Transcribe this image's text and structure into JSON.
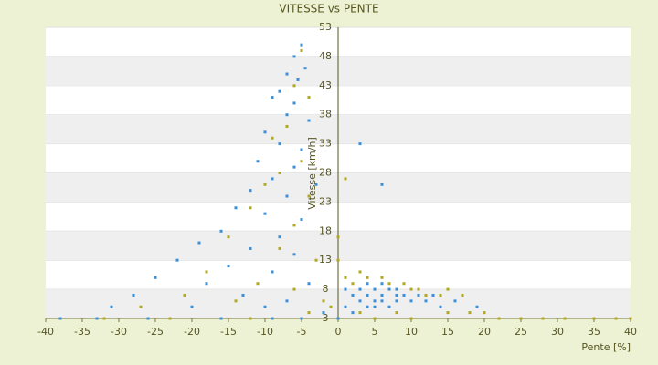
{
  "chart_data": {
    "type": "scatter",
    "title": "VITESSE vs PENTE",
    "x_label": "Pente [%]",
    "y_label": "Vitesse [km/h]",
    "xlim": [
      -40,
      40
    ],
    "xticks": [
      -40,
      -35,
      -30,
      -25,
      -20,
      -15,
      -10,
      -5,
      0,
      5,
      10,
      15,
      20,
      25,
      30,
      35,
      40
    ],
    "ylim": [
      3,
      53
    ],
    "yticks": [
      3,
      8,
      13,
      18,
      23,
      28,
      33,
      38,
      43,
      48,
      53
    ],
    "grid": true,
    "series": [
      {
        "color": "#3a8fd8",
        "x": [
          -5,
          -6,
          -4.5,
          -7,
          -5.5,
          -8,
          -9,
          -6,
          -7,
          -4,
          -10,
          -8,
          -5,
          -11,
          -6,
          -9,
          -3,
          -12,
          -7,
          -14,
          -10,
          -5,
          -16,
          -8,
          -19,
          -12,
          -6,
          -22,
          -15,
          -9,
          -25,
          -18,
          -4,
          -28,
          -13,
          -7,
          -31,
          -20,
          -10,
          -2,
          -38,
          -33,
          -26,
          -16,
          -9,
          -5,
          3,
          6,
          1,
          2,
          3,
          4,
          5,
          5,
          6,
          6,
          7,
          7,
          8,
          8,
          9,
          4,
          3,
          10,
          11,
          12,
          14,
          16,
          19,
          2,
          0,
          1,
          5,
          6,
          8,
          13,
          4
        ],
        "values": [
          50,
          48,
          46,
          45,
          44,
          42,
          41,
          40,
          38,
          37,
          35,
          33,
          32,
          30,
          29,
          27,
          26,
          25,
          24,
          22,
          21,
          20,
          18,
          17,
          16,
          15,
          14,
          13,
          12,
          11,
          10,
          9,
          9,
          7,
          7,
          6,
          5,
          5,
          5,
          4,
          3,
          3,
          3,
          3,
          3,
          3,
          33,
          26,
          8,
          7,
          6,
          7,
          8,
          6,
          7,
          6,
          8,
          5,
          7,
          6,
          7,
          5,
          8,
          6,
          7,
          6,
          5,
          6,
          5,
          4,
          3,
          5,
          5,
          9,
          8,
          7,
          9
        ]
      },
      {
        "color": "#b0a820",
        "x": [
          -5,
          -6,
          -4,
          -7,
          -9,
          -5,
          -8,
          -10,
          -4,
          -12,
          -6,
          -15,
          -8,
          -3,
          -18,
          -11,
          -6,
          -21,
          -14,
          -27,
          -2,
          -32,
          -23,
          -12,
          -4,
          0,
          0,
          1,
          1,
          2,
          3,
          4,
          6,
          7,
          9,
          10,
          11,
          12,
          14,
          15,
          17,
          15,
          18,
          22,
          25,
          28,
          31,
          35,
          38,
          40,
          5,
          10,
          3,
          8,
          -1,
          20
        ],
        "values": [
          49,
          43,
          41,
          36,
          34,
          30,
          28,
          26,
          24,
          22,
          19,
          17,
          15,
          13,
          11,
          9,
          8,
          7,
          6,
          5,
          6,
          3,
          3,
          3,
          4,
          17,
          13,
          10,
          27,
          9,
          11,
          10,
          10,
          9,
          9,
          8,
          8,
          7,
          7,
          8,
          7,
          4,
          4,
          3,
          3,
          3,
          3,
          3,
          3,
          3,
          3,
          3,
          4,
          4,
          5,
          4
        ]
      }
    ]
  }
}
